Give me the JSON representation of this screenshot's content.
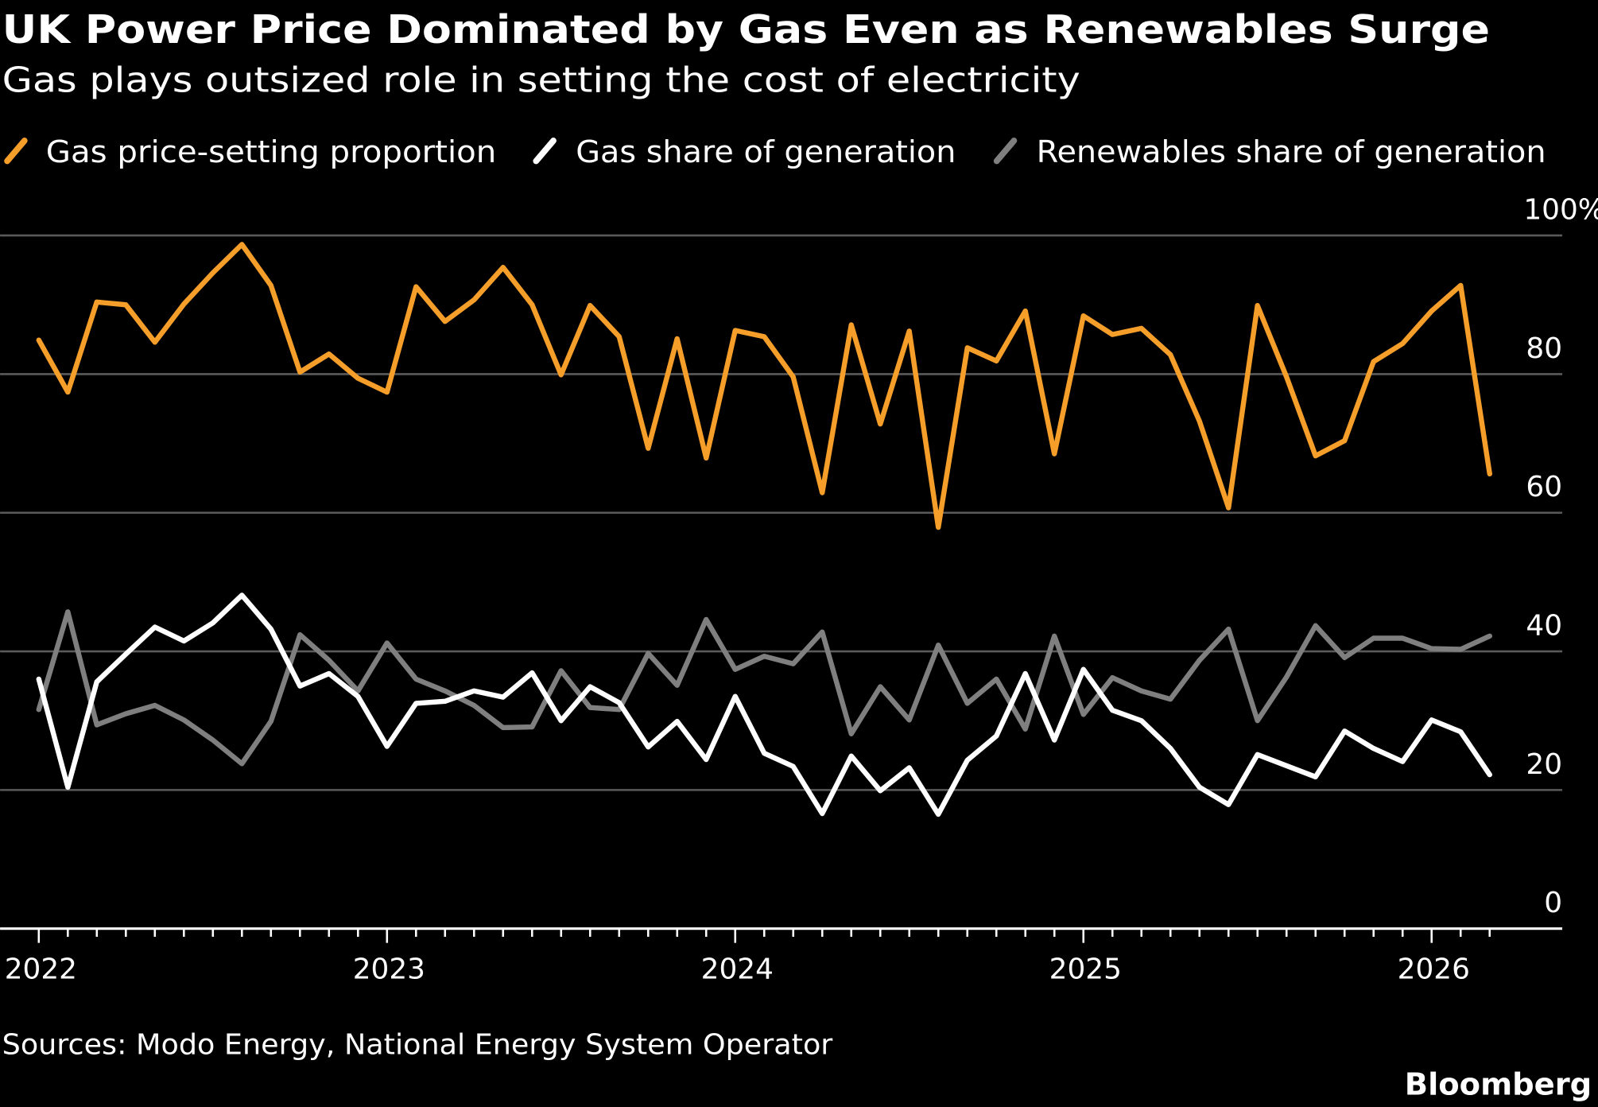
{
  "brand": "Bloomberg",
  "chart_data": {
    "type": "line",
    "title": "UK Power Price Dominated by Gas Even as Renewables Surge",
    "subtitle": "Gas plays outsized role in setting the cost of electricity",
    "source": "Sources: Modo Energy, National Energy System Operator",
    "legend_placement": "top-left",
    "grid": true,
    "ylim": [
      0,
      100
    ],
    "yticks": [
      0,
      20,
      40,
      60,
      80,
      100
    ],
    "ytick_labels": [
      "0",
      "20",
      "40",
      "60",
      "80",
      "100%"
    ],
    "xticks": [
      "2022",
      "2023",
      "2024",
      "2025",
      "2026"
    ],
    "x_start": "2022-01",
    "x_frequency": "monthly",
    "x_end": "2026-03",
    "series": [
      {
        "name": "Gas price-setting proportion",
        "color": "#f59e2a",
        "values": [
          84.9,
          77.4,
          90.4,
          90.0,
          84.6,
          90.1,
          94.6,
          98.7,
          92.8,
          80.3,
          82.9,
          79.4,
          77.4,
          92.6,
          87.6,
          90.7,
          95.4,
          90.0,
          79.9,
          89.9,
          85.4,
          69.3,
          85.1,
          67.9,
          86.3,
          85.4,
          79.6,
          62.9,
          87.1,
          72.8,
          86.2,
          57.9,
          83.8,
          81.9,
          89.1,
          68.5,
          88.4,
          85.7,
          86.6,
          82.8,
          73.2,
          60.7,
          89.9,
          79.6,
          68.2,
          70.4,
          81.8,
          84.4,
          89.1,
          92.8,
          65.6
        ]
      },
      {
        "name": "Gas share of generation",
        "color": "#ffffff",
        "values": [
          36.0,
          20.4,
          35.6,
          39.6,
          43.5,
          41.5,
          44.1,
          48.1,
          43.2,
          35.0,
          36.8,
          33.5,
          26.3,
          32.5,
          32.8,
          34.3,
          33.4,
          36.9,
          30.0,
          34.9,
          32.6,
          26.2,
          29.9,
          24.4,
          33.5,
          25.3,
          23.4,
          16.6,
          24.9,
          19.9,
          23.2,
          16.5,
          24.3,
          27.8,
          36.8,
          27.2,
          37.4,
          31.5,
          30.0,
          26.0,
          20.4,
          17.9,
          25.1,
          23.5,
          21.9,
          28.5,
          26.0,
          24.1,
          30.1,
          28.4,
          22.2
        ]
      },
      {
        "name": "Renewables share of generation",
        "color": "#7f7f7f",
        "values": [
          31.6,
          45.7,
          29.4,
          31.0,
          32.2,
          30.1,
          27.2,
          23.8,
          29.9,
          42.4,
          38.7,
          34.3,
          41.2,
          36.0,
          34.3,
          32.2,
          29.0,
          29.1,
          37.2,
          31.9,
          31.6,
          39.7,
          35.1,
          44.6,
          37.4,
          39.3,
          38.2,
          42.8,
          28.1,
          34.9,
          30.1,
          40.9,
          32.5,
          36.0,
          28.8,
          42.2,
          30.9,
          36.2,
          34.3,
          33.1,
          38.7,
          43.2,
          30.0,
          36.3,
          43.7,
          39.1,
          41.9,
          41.9,
          40.4,
          40.3,
          42.2
        ]
      }
    ]
  }
}
